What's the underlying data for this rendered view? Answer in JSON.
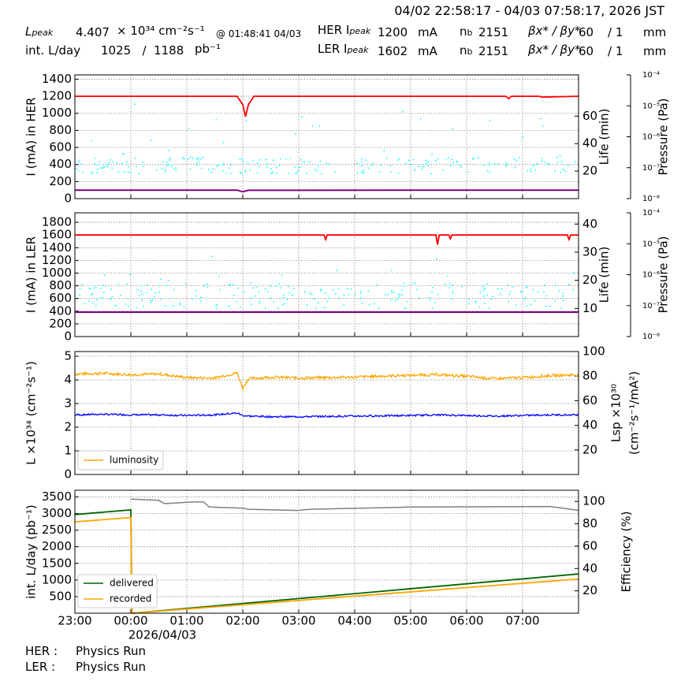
{
  "header": {
    "time_range": "04/02 22:58:17 - 04/03 07:58:17, 2026 JST",
    "lpeak_label": "L",
    "lpeak_sub": "peak",
    "lpeak_value": "4.407",
    "lpeak_unit": "× 10³⁴ cm⁻²s⁻¹",
    "lpeak_time": "@ 01:48:41 04/03",
    "intL_label": "int. L/day",
    "intL_values": "1025   /  1188",
    "intL_unit": "pb⁻¹",
    "her_label": "HER I",
    "her_sub": "peak",
    "her_value": "1200",
    "her_unit": "mA",
    "her_nb_label": "n",
    "her_nb_sub": "b",
    "her_nb": "2151",
    "her_beta_label": "βx* / βy*",
    "her_beta": "60",
    "her_beta_ratio": "/ 1",
    "her_beta_unit": "mm",
    "ler_label": "LER I",
    "ler_sub": "peak",
    "ler_value": "1602",
    "ler_unit": "mA",
    "ler_nb_label": "n",
    "ler_nb_sub": "b",
    "ler_nb": "2151",
    "ler_beta_label": "βx* / βy*",
    "ler_beta": "60",
    "ler_beta_ratio": "/ 1",
    "ler_beta_unit": "mm"
  },
  "footer": {
    "her_label": "HER :",
    "her_status": "Physics Run",
    "ler_label": "LER :",
    "ler_status": "Physics Run"
  },
  "colors": {
    "current": "#ff0000",
    "life": "#00ffff",
    "pressure": "#800080",
    "luminosity": "#ffa500",
    "specific": "#0000ff",
    "delivered": "#006400",
    "recorded": "#ffa500",
    "efficiency": "#808080"
  },
  "chart_data": [
    {
      "type": "line",
      "panel": "her",
      "ylabel": "I (mA) in HER",
      "ylim": [
        0,
        1450
      ],
      "yticks": [
        0,
        200,
        400,
        600,
        800,
        1000,
        1200,
        1400
      ],
      "y2label": "Life (min)",
      "y2lim": [
        0,
        90
      ],
      "y2ticks": [
        20,
        40,
        60
      ],
      "y3label": "Pressure (Pa)",
      "y3log": true,
      "y3ticks": [
        "10⁻⁸",
        "10⁻⁷",
        "10⁻⁶",
        "10⁻⁵",
        "10⁻⁴"
      ],
      "grid": true,
      "x_hours": [
        0,
        2.9,
        3.0,
        3.05,
        3.1,
        3.2,
        4.4,
        7.7,
        7.75,
        7.8,
        7.9,
        8.3,
        8.35,
        9.0
      ],
      "current": [
        1200,
        1200,
        1100,
        960,
        1100,
        1200,
        1200,
        1200,
        1170,
        1200,
        1200,
        1200,
        1190,
        1200
      ],
      "pressure_x": [
        0,
        2.9,
        3.0,
        3.1,
        9.0
      ],
      "pressure": [
        100,
        100,
        80,
        98,
        100
      ],
      "life_scatter": "cyan points scattered mostly 15–30 min with excursions to ~65 min"
    },
    {
      "type": "line",
      "panel": "ler",
      "ylabel": "I (mA) in LER",
      "ylim": [
        0,
        1950
      ],
      "yticks": [
        0,
        200,
        400,
        600,
        800,
        1000,
        1200,
        1400,
        1600,
        1800
      ],
      "y2label": "Life (min)",
      "y2lim": [
        0,
        44
      ],
      "y2ticks": [
        10,
        20,
        30,
        40
      ],
      "y3label": "Pressure (Pa)",
      "y3log": true,
      "y3ticks": [
        "10⁻⁸",
        "10⁻⁷",
        "10⁻⁶",
        "10⁻⁵",
        "10⁻⁴"
      ],
      "grid": true,
      "x_hours": [
        0,
        4.45,
        4.48,
        4.51,
        6.45,
        6.48,
        6.51,
        6.68,
        6.71,
        6.74,
        8.8,
        8.83,
        8.86,
        9.0
      ],
      "current": [
        1600,
        1600,
        1530,
        1600,
        1600,
        1450,
        1600,
        1600,
        1540,
        1600,
        1600,
        1530,
        1600,
        1600
      ],
      "pressure_x": [
        0,
        9.0
      ],
      "pressure": [
        385,
        385
      ],
      "life_scatter": "cyan points scattered mostly 8–20 min"
    },
    {
      "type": "line",
      "panel": "luminosity",
      "ylabel": "L ×10³⁴ (cm⁻²s⁻¹)",
      "ylim": [
        0,
        5.2
      ],
      "yticks": [
        0,
        1,
        2,
        3,
        4,
        5
      ],
      "y2label": "Lsp ×10³⁰ (cm⁻²s⁻¹/mA²)",
      "y2lim": [
        0,
        100
      ],
      "y2ticks": [
        20,
        40,
        60,
        80,
        100
      ],
      "legend": [
        "luminosity"
      ],
      "legend_position": "lower-left",
      "grid": true,
      "x_hours": [
        0,
        0.5,
        1.0,
        1.5,
        2.0,
        2.5,
        2.9,
        3.0,
        3.1,
        3.5,
        4.0,
        5.0,
        6.0,
        6.5,
        7.0,
        7.5,
        8.0,
        8.5,
        9.0
      ],
      "luminosity": [
        4.25,
        4.28,
        4.22,
        4.25,
        4.1,
        4.08,
        4.3,
        3.65,
        4.05,
        4.12,
        4.08,
        4.12,
        4.2,
        4.22,
        4.15,
        4.05,
        4.1,
        4.18,
        4.22
      ],
      "specific": [
        48.5,
        49.0,
        48.5,
        48.5,
        48.0,
        48.5,
        50.0,
        48.0,
        47.5,
        47.0,
        47.0,
        47.5,
        48.0,
        48.5,
        48.0,
        47.5,
        48.0,
        48.5,
        48.5
      ]
    },
    {
      "type": "line",
      "panel": "integrated",
      "ylabel": "int. L/day (pb⁻¹)",
      "ylim": [
        0,
        3700
      ],
      "yticks": [
        500,
        1000,
        1500,
        2000,
        2500,
        3000,
        3500
      ],
      "y2label": "Efficiency (%)",
      "y2lim": [
        0,
        110
      ],
      "y2ticks": [
        20,
        40,
        60,
        80,
        100
      ],
      "xticks": [
        "23:00",
        "00:00",
        "01:00",
        "02:00",
        "03:00",
        "04:00",
        "05:00",
        "06:00",
        "07:00"
      ],
      "xdate": "2026/04/03",
      "legend": [
        "delivered",
        "recorded"
      ],
      "legend_position": "lower-left",
      "grid": true,
      "series": [
        {
          "name": "delivered",
          "x_hours": [
            0,
            1.0,
            1.02,
            9.0
          ],
          "values": [
            2970,
            3110,
            0,
            1180
          ]
        },
        {
          "name": "recorded",
          "x_hours": [
            0,
            1.0,
            1.02,
            9.0
          ],
          "values": [
            2750,
            2880,
            0,
            1030
          ]
        },
        {
          "x_hours": [
            1.0,
            1.5,
            1.6,
            2.1,
            2.3,
            2.4,
            3.0,
            3.1,
            3.9,
            4.0,
            4.2,
            6.0,
            8.5,
            9.0
          ],
          "values": [
            102,
            101,
            98,
            99.5,
            99.5,
            95,
            94,
            93,
            92,
            92,
            93,
            95,
            95.5,
            92
          ]
        }
      ]
    }
  ]
}
